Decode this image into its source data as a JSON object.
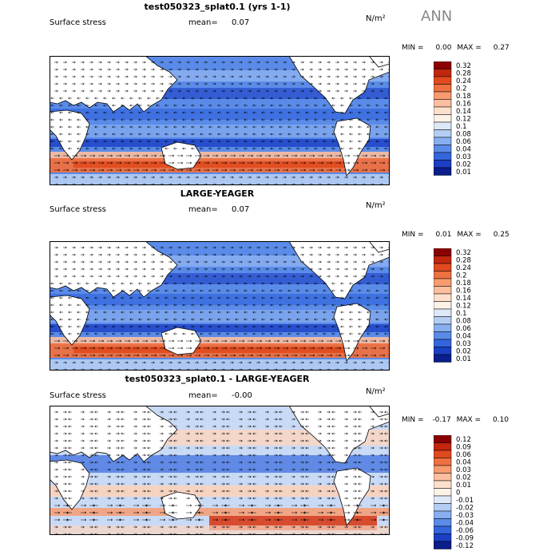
{
  "season": "ANN",
  "panels": [
    {
      "title": "test050323_splat0.1 (yrs 1-1)",
      "variable": "Surface stress",
      "mean_label": "mean=",
      "mean_value": "0.07",
      "units": "N/m²",
      "min_label": "MIN =",
      "min_value": "0.00",
      "max_label": "MAX =",
      "max_value": "0.27",
      "kind": "abs",
      "levels": [
        "0.32",
        "0.28",
        "0.24",
        "0.2",
        "0.18",
        "0.16",
        "0.14",
        "0.12",
        "0.1",
        "0.08",
        "0.06",
        "0.04",
        "0.03",
        "0.02",
        "0.01"
      ]
    },
    {
      "title": "LARGE-YEAGER",
      "variable": "Surface stress",
      "mean_label": "mean=",
      "mean_value": "0.07",
      "units": "N/m²",
      "min_label": "MIN =",
      "min_value": "0.01",
      "max_label": "MAX =",
      "max_value": "0.25",
      "kind": "abs",
      "levels": [
        "0.32",
        "0.28",
        "0.24",
        "0.2",
        "0.18",
        "0.16",
        "0.14",
        "0.12",
        "0.1",
        "0.08",
        "0.06",
        "0.04",
        "0.03",
        "0.02",
        "0.01"
      ]
    },
    {
      "title": "test050323_splat0.1 - LARGE-YEAGER",
      "variable": "Surface stress",
      "mean_label": "mean=",
      "mean_value": "-0.00",
      "units": "N/m²",
      "min_label": "MIN =",
      "min_value": "-0.17",
      "max_label": "MAX =",
      "max_value": "0.10",
      "kind": "diff",
      "levels": [
        "0.12",
        "0.09",
        "0.06",
        "0.04",
        "0.03",
        "0.02",
        "0.01",
        "0",
        "-0.01",
        "-0.02",
        "-0.03",
        "-0.04",
        "-0.06",
        "-0.09",
        "-0.12"
      ]
    }
  ],
  "colors": {
    "abs_scale": [
      "#8b0000",
      "#c2260e",
      "#e04a1e",
      "#ef7040",
      "#f89b70",
      "#fbbe9e",
      "#fde0cc",
      "#fdf2e8",
      "#dde8f8",
      "#b4cdf3",
      "#88aef0",
      "#5a8be8",
      "#3366dd",
      "#1a3fc4",
      "#0a1e8c"
    ],
    "diff_scale": [
      "#8b0000",
      "#c2260e",
      "#e04a1e",
      "#ef7040",
      "#f89b70",
      "#fbbe9e",
      "#fde0cc",
      "#fdf2e8",
      "#dde8f8",
      "#b4cdf3",
      "#88aef0",
      "#5a8be8",
      "#3366dd",
      "#1a3fc4",
      "#0a1e8c"
    ],
    "land": "#ffffff",
    "coast": "#000000"
  },
  "chart_data": [
    {
      "type": "heatmap",
      "title": "test050323_splat0.1 (yrs 1-1)",
      "subtitle": "Surface stress",
      "mean": 0.07,
      "units": "N/m²",
      "min": 0.0,
      "max": 0.27,
      "color_levels": [
        0.01,
        0.02,
        0.03,
        0.04,
        0.06,
        0.08,
        0.1,
        0.12,
        0.14,
        0.16,
        0.18,
        0.2,
        0.24,
        0.28,
        0.32
      ],
      "vectors": true
    },
    {
      "type": "heatmap",
      "title": "LARGE-YEAGER",
      "subtitle": "Surface stress",
      "mean": 0.07,
      "units": "N/m²",
      "min": 0.01,
      "max": 0.25,
      "color_levels": [
        0.01,
        0.02,
        0.03,
        0.04,
        0.06,
        0.08,
        0.1,
        0.12,
        0.14,
        0.16,
        0.18,
        0.2,
        0.24,
        0.28,
        0.32
      ],
      "vectors": true
    },
    {
      "type": "heatmap",
      "title": "test050323_splat0.1 - LARGE-YEAGER",
      "subtitle": "Surface stress",
      "mean": -0.0,
      "units": "N/m²",
      "min": -0.17,
      "max": 0.1,
      "color_levels": [
        -0.12,
        -0.09,
        -0.06,
        -0.04,
        -0.03,
        -0.02,
        -0.01,
        0,
        0.01,
        0.02,
        0.03,
        0.04,
        0.06,
        0.09,
        0.12
      ],
      "vectors": true
    }
  ]
}
